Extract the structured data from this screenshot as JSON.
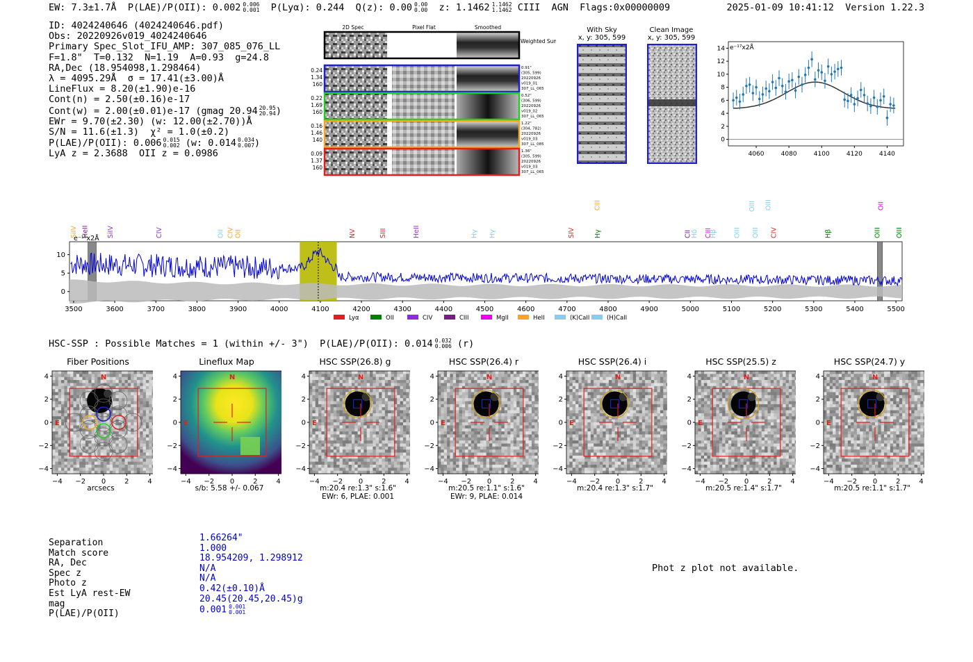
{
  "header": {
    "ew": "EW: 7.3±1.7Å",
    "plae_label": "P(LAE)/P(OII): 0.002",
    "plae_sup": "0.006",
    "plae_sub": "0.001",
    "plya": "P(Lyα): 0.244",
    "qz_label": "Q(z): 0.00",
    "qz_sup": "0.00",
    "qz_sub": "0.00",
    "z_label": "z: 1.1462",
    "z_sup": "1.1462",
    "z_sub": "1.1462",
    "line": "CIII",
    "type": "AGN",
    "flags": "Flags:0x00000009",
    "datetime": "2025-01-09 10:41:12",
    "version": "Version 1.22.3"
  },
  "info": {
    "id": "ID: 4024240646 (4024240646.pdf)",
    "obs": "Obs: 20220926v019_4024240646",
    "primary": "Primary Spec_Slot_IFU_AMP: 307_085_076_LL",
    "params": "F=1.8\"  T=0.132  N=1.19  A=0.93  g=24.8",
    "radec": "RA,Dec (18.954098,1.298464)",
    "lambda": "λ = 4095.29Å  σ = 17.41(±3.00)Å",
    "lineflux": "LineFlux = 8.20(±1.90)e-16",
    "contn": "Cont(n) = 2.50(±0.16)e-17",
    "contw": "Cont(w) = 2.00(±0.01)e-17 (gmag 20.94",
    "contw_sup": "20.95",
    "contw_sub": "20.94",
    "ewr": "EWr = 9.70(±2.30) (w: 12.00(±2.70))Å",
    "sn": "S/N = 11.6(±1.3)  χ² = 1.0(±0.2)",
    "plae": "P(LAE)/P(OII): 0.006",
    "plae_sup": "0.015",
    "plae_sub": "0.002",
    "plae_w": "(w: 0.014",
    "plae_w_sup": "0.034",
    "plae_w_sub": "0.007",
    "lyaz": "LyA z = 2.3688  OII z = 0.0986"
  },
  "cutouts": {
    "col_headers": [
      "2D Spec",
      "Pixel Flat",
      "Smoothed"
    ],
    "weighted_label": "Weighted Sum",
    "rows": [
      {
        "left": [
          "0.24",
          "1.34",
          "160"
        ],
        "right": [
          "0.91\"",
          "(305, 599)",
          "20220926",
          "v019_01",
          "307_LL_065"
        ],
        "color": "#1f1fd0"
      },
      {
        "left": [
          "0.22",
          "1.69",
          "160"
        ],
        "right": [
          "0.52\"",
          "(306, 599)",
          "20220926",
          "v019_02",
          "307_LL_065"
        ],
        "color": "#22cc22"
      },
      {
        "left": [
          "0.16",
          "1.46",
          "140"
        ],
        "right": [
          "1.22\"",
          "(304, 782)",
          "20220926",
          "v019_03",
          "307_LL_085"
        ],
        "color": "#f5a623"
      },
      {
        "left": [
          "0.09",
          "1.37",
          "160"
        ],
        "right": [
          "1.36\"",
          "(305, 599)",
          "20220926",
          "v019_03",
          "307_LL_065"
        ],
        "color": "#e02020"
      }
    ],
    "with_sky": "With Sky",
    "with_sky_xy": "x, y: 305, 599",
    "clean": "Clean Image",
    "clean_xy": "x, y: 305, 599"
  },
  "zoom_chart": {
    "type": "scatter",
    "unit_label": "e⁻¹⁷x2Å",
    "xlim": [
      4043,
      4150
    ],
    "ylim": [
      -1,
      15
    ],
    "xticks": [
      4060,
      4080,
      4100,
      4120,
      4140
    ],
    "yticks": [
      0,
      2,
      4,
      6,
      8,
      10,
      12,
      14
    ],
    "x": [
      4046,
      4048,
      4050,
      4052,
      4054,
      4056,
      4058,
      4060,
      4062,
      4064,
      4066,
      4068,
      4070,
      4072,
      4074,
      4076,
      4078,
      4080,
      4082,
      4084,
      4086,
      4088,
      4090,
      4092,
      4094,
      4096,
      4098,
      4100,
      4102,
      4104,
      4106,
      4108,
      4110,
      4112,
      4114,
      4116,
      4118,
      4120,
      4122,
      4124,
      4126,
      4128,
      4130,
      4132,
      4134,
      4136,
      4138,
      4140,
      4142,
      4144
    ],
    "y": [
      6.0,
      6.4,
      5.8,
      6.9,
      8.2,
      8.4,
      7.1,
      8.0,
      6.2,
      6.9,
      7.8,
      7.4,
      8.8,
      7.9,
      9.4,
      8.2,
      7.3,
      8.9,
      9.1,
      7.5,
      9.6,
      8.4,
      9.9,
      11.0,
      12.3,
      9.2,
      10.6,
      10.3,
      9.0,
      11.2,
      10.0,
      10.4,
      10.8,
      11.0,
      6.1,
      5.9,
      6.8,
      5.4,
      6.3,
      7.6,
      6.8,
      5.5,
      5.1,
      6.4,
      5.0,
      6.0,
      6.6,
      3.3,
      5.4,
      5.2
    ],
    "err": 1.2,
    "model_peak": 8.8,
    "model_center": 4096,
    "model_sigma": 17.4,
    "model_base": 4.7
  },
  "spectrum_chart": {
    "type": "line",
    "unit_label": "e⁻¹⁷x2Å",
    "xlim": [
      3490,
      5515
    ],
    "ylim": [
      -2.5,
      13.5
    ],
    "xticks": [
      3500,
      3600,
      3700,
      3800,
      3900,
      4000,
      4100,
      4200,
      4300,
      4400,
      4500,
      4600,
      4700,
      4800,
      4900,
      5000,
      5100,
      5200,
      5300,
      5400,
      5500
    ],
    "yticks": [
      0,
      5,
      10
    ],
    "highlight": [
      4050,
      4140
    ],
    "marker": 4095,
    "bad_regions": [
      [
        3535,
        3555
      ],
      [
        5455,
        5467
      ]
    ],
    "line_labels": [
      {
        "name": "SiIV",
        "x": 3500,
        "color": "#f5a623",
        "row": 0
      },
      {
        "name": "HeII",
        "x": 3525,
        "color": "#7a1a8a",
        "row": 0
      },
      {
        "name": "SiIV",
        "x": 3590,
        "color": "#8a2be2",
        "row": 0
      },
      {
        "name": "CIV",
        "x": 3705,
        "color": "#8a2be2",
        "row": 0
      },
      {
        "name": "OII",
        "x": 3858,
        "color": "#87ceeb",
        "row": 0
      },
      {
        "name": "CIV",
        "x": 3878,
        "color": "#f5a623",
        "row": 0
      },
      {
        "name": "OII",
        "x": 3900,
        "color": "#f5a623",
        "row": 0
      },
      {
        "name": "NV",
        "x": 4175,
        "color": "#e02020",
        "row": 0
      },
      {
        "name": "SIII",
        "x": 4252,
        "color": "#e02020",
        "row": 0
      },
      {
        "name": "HeII",
        "x": 4330,
        "color": "#8a2be2",
        "row": 0
      },
      {
        "name": "Hγ",
        "x": 4475,
        "color": "#87ceeb",
        "row": 0
      },
      {
        "name": "Hγ",
        "x": 4515,
        "color": "#87ceeb",
        "row": 0
      },
      {
        "name": "SIV",
        "x": 4710,
        "color": "#e02020",
        "row": 0
      },
      {
        "name": "CIII",
        "x": 4770,
        "color": "#f5a623",
        "row": 2
      },
      {
        "name": "Hγ",
        "x": 4775,
        "color": "#008000",
        "row": 0
      },
      {
        "name": "CII",
        "x": 4990,
        "color": "#7a1a8a",
        "row": 0
      },
      {
        "name": "Hδ",
        "x": 5010,
        "color": "#87ceeb",
        "row": 0
      },
      {
        "name": "CIII",
        "x": 5040,
        "color": "#ee00ee",
        "row": 0
      },
      {
        "name": "Hβ",
        "x": 5055,
        "color": "#87ceeb",
        "row": 0
      },
      {
        "name": "OIII",
        "x": 5110,
        "color": "#87ceeb",
        "row": 0
      },
      {
        "name": "OIII",
        "x": 5150,
        "color": "#87ceeb",
        "row": 1
      },
      {
        "name": "OIII",
        "x": 5155,
        "color": "#87ceeb",
        "row": 0
      },
      {
        "name": "OIII",
        "x": 5190,
        "color": "#87ceeb",
        "row": 2
      },
      {
        "name": "CIV",
        "x": 5200,
        "color": "#e02020",
        "row": 0
      },
      {
        "name": "Hβ",
        "x": 5335,
        "color": "#008000",
        "row": 0
      },
      {
        "name": "OII",
        "x": 5460,
        "color": "#ee00ee",
        "row": 2
      },
      {
        "name": "OIII",
        "x": 5455,
        "color": "#008000",
        "row": 0
      },
      {
        "name": "OIII",
        "x": 5505,
        "color": "#008000",
        "row": 0
      }
    ],
    "legend": [
      {
        "name": "Lyα",
        "color": "#e02020"
      },
      {
        "name": "OII",
        "color": "#008000"
      },
      {
        "name": "CIV",
        "color": "#8a2be2"
      },
      {
        "name": "CIII",
        "color": "#7a1a8a"
      },
      {
        "name": "MgII",
        "color": "#ee00ee"
      },
      {
        "name": "HeII",
        "color": "#f5a623"
      },
      {
        "name": "(K)CaII",
        "color": "#87ceeb"
      },
      {
        "name": "(H)CaII",
        "color": "#87ceeb"
      }
    ]
  },
  "hsc_line": {
    "text": "HSC-SSP : Possible Matches = 1 (within +/- 3\")  P(LAE)/P(OII): 0.014",
    "sup": "0.032",
    "sub": "0.006",
    "band": "(r)"
  },
  "hsc_panels": [
    {
      "title": "Fiber Positions",
      "cap1": "arcsecs",
      "cap2": ""
    },
    {
      "title": "Lineflux Map",
      "cap1": "s/b: 5.58 +/- 0.067",
      "cap2": ""
    },
    {
      "title": "HSC SSP(26.8) g",
      "cap1": "m:20.4  re:1.3\"  s:1.6\"",
      "cap2": "EWr: 6, PLAE: 0.001"
    },
    {
      "title": "HSC SSP(26.4) r",
      "cap1": "m:20.5  re:1.1\"  s:1.6\"",
      "cap2": "EWr: 9, PLAE: 0.014"
    },
    {
      "title": "HSC SSP(26.4) i",
      "cap1": "m:20.4  re:1.3\"  s:1.7\"",
      "cap2": ""
    },
    {
      "title": "HSC SSP(25.5) z",
      "cap1": "m:20.5  re:1.4\"  s:1.7\"",
      "cap2": ""
    },
    {
      "title": "HSC SSP(24.7) y",
      "cap1": "m:20.5  re:1.1\"  s:1.7\"",
      "cap2": ""
    }
  ],
  "compass": {
    "n": "N",
    "e": "E"
  },
  "img_ticks": [
    "4",
    "2",
    "0",
    "−2",
    "−4"
  ],
  "img_xticks": [
    "−4",
    "−2",
    "0",
    "2",
    "4"
  ],
  "match": {
    "rows": [
      {
        "k": "Separation",
        "v": "1.66264\""
      },
      {
        "k": "Match score",
        "v": "1.000"
      },
      {
        "k": "RA, Dec",
        "v": "18.954209, 1.298912"
      },
      {
        "k": "Spec z",
        "v": "N/A"
      },
      {
        "k": "Photo z",
        "v": "N/A"
      },
      {
        "k": "Est LyA rest-EW",
        "v": "0.42(±0.10)Å"
      },
      {
        "k": "mag",
        "v": "20.45(20.45,20.45)g"
      },
      {
        "k": "P(LAE)/P(OII)",
        "v": "0.001"
      }
    ],
    "plae_sup": "0.001",
    "plae_sub": "0.001"
  },
  "photz": "Phot z plot not available."
}
